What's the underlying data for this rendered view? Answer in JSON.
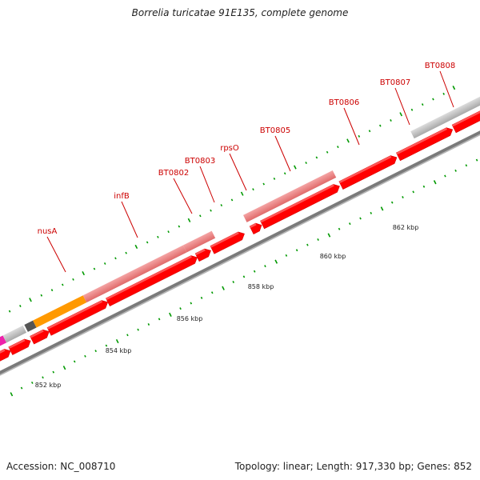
{
  "title": "Borrelia turicatae 91E135, complete genome",
  "footer": {
    "accession": "Accession: NC_008710",
    "summary": "Topology: linear; Length: 917,330 bp; Genes: 852"
  },
  "ruler": {
    "unit": "kbp",
    "labels": [
      "852 kbp",
      "854 kbp",
      "856 kbp",
      "858 kbp",
      "860 kbp",
      "862 kbp"
    ]
  },
  "genes": [
    "nusA",
    "infB",
    "BT0802",
    "BT0803",
    "rpsO",
    "BT0805",
    "BT0806",
    "BT0807",
    "BT0808"
  ],
  "colors": {
    "gene_red": "#ff0000",
    "gene_top": "#ff5555",
    "cds_pink": "#f08080",
    "cds_grey": "#c0c0c0",
    "cds_orange": "#ff9900",
    "cds_dark": "#555555",
    "cds_magenta": "#ee22aa",
    "backbone": "#7a7a7a",
    "tick_green": "#009900",
    "label_red": "#cc0000"
  }
}
